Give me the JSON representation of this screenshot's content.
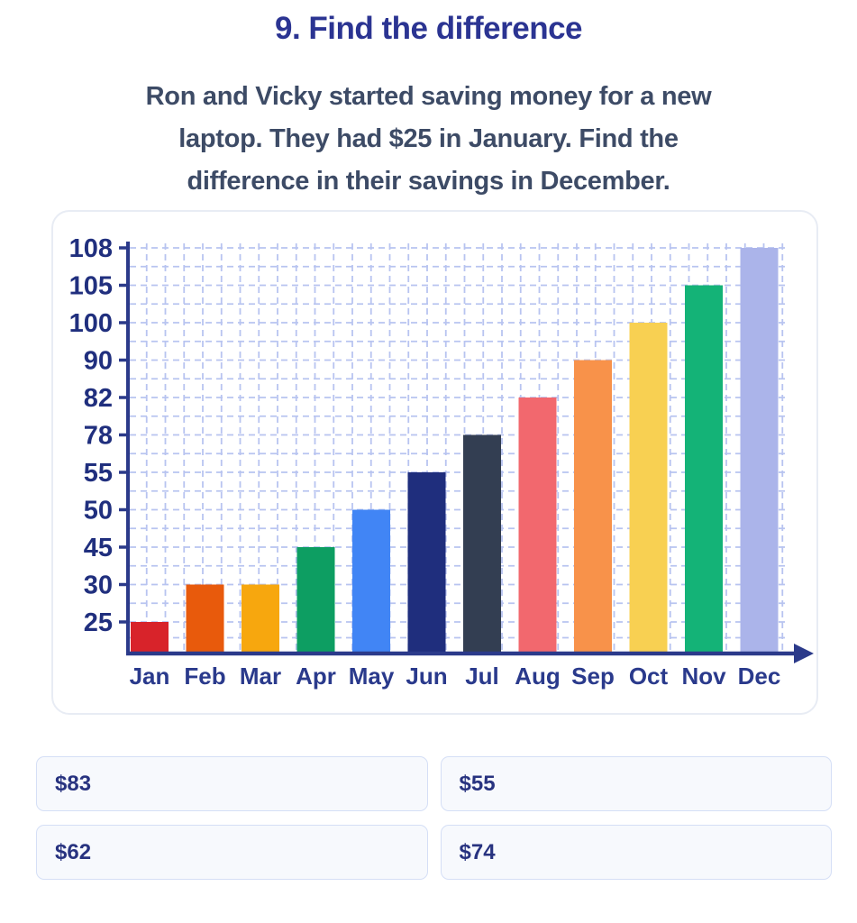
{
  "title": "9. Find the difference",
  "question": {
    "lines": [
      "Ron and Vicky started saving money for a new",
      "laptop. They had $25 in January. Find the",
      "difference in their savings in December."
    ]
  },
  "chart_data": {
    "type": "bar",
    "title": "",
    "xlabel": "",
    "ylabel": "",
    "categories": [
      "Jan",
      "Feb",
      "Mar",
      "Apr",
      "May",
      "Jun",
      "Jul",
      "Aug",
      "Sep",
      "Oct",
      "Nov",
      "Dec"
    ],
    "values": [
      25,
      30,
      30,
      45,
      50,
      55,
      78,
      82,
      90,
      100,
      105,
      108
    ],
    "bar_colors": [
      "#d8232a",
      "#e85a0c",
      "#f7a70e",
      "#0d9e62",
      "#4185f5",
      "#1f2e7d",
      "#333e52",
      "#f2686e",
      "#f8924a",
      "#f8d052",
      "#14b377",
      "#abb4ea"
    ],
    "y_ticks": [
      25,
      30,
      45,
      50,
      55,
      78,
      82,
      90,
      100,
      105,
      108
    ],
    "ylim": [
      25,
      108
    ],
    "grid": "dashed-both",
    "legend_position": "none",
    "grid_color": "#b8c4f0",
    "axis_color": "#2b3a8a",
    "y_label_color": "#202f7e",
    "x_label_color": "#2a3a8c"
  },
  "options": [
    {
      "label": "$83"
    },
    {
      "label": "$55"
    },
    {
      "label": "$62"
    },
    {
      "label": "$74"
    }
  ],
  "colors": {
    "title": "#2b3492",
    "question": "#3d4b66",
    "option_text": "#283380",
    "option_bg": "#f7f9fd",
    "option_border": "#d5dff6",
    "card_border": "#e8ecf4"
  }
}
